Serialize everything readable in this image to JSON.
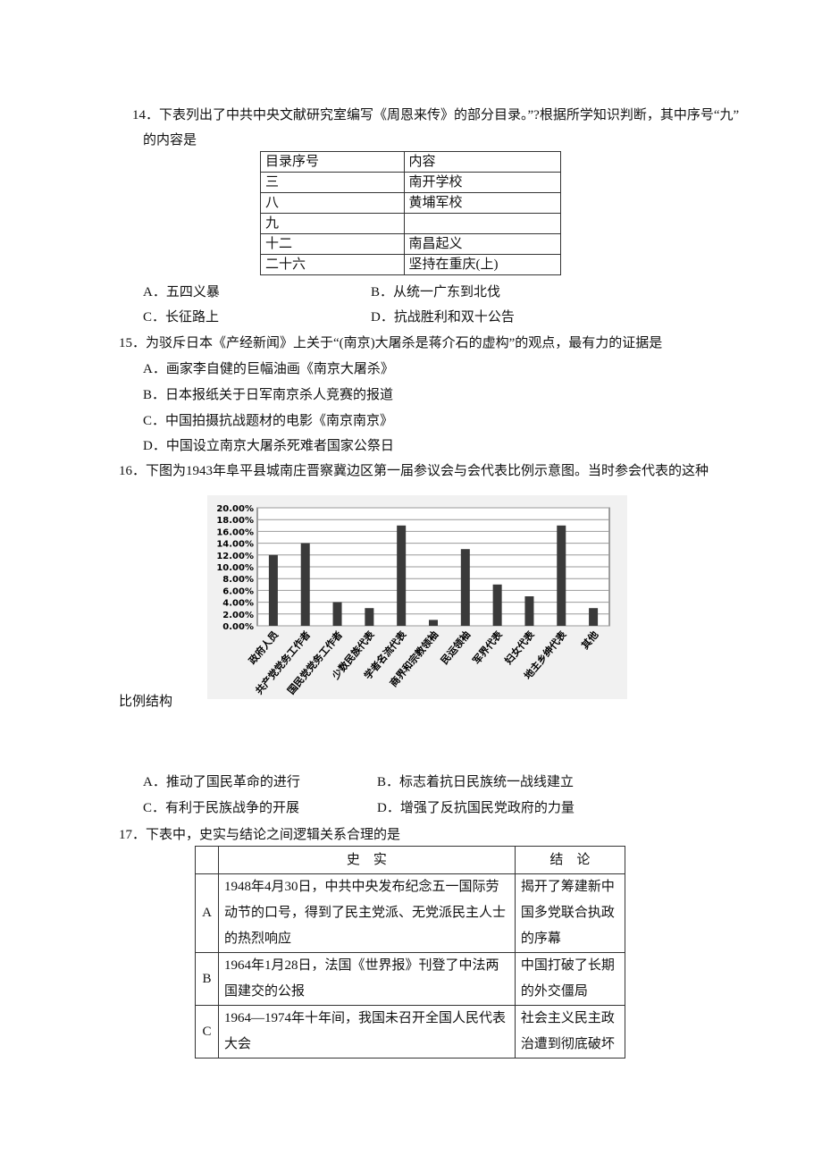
{
  "questions": [
    {
      "stem": "14．下表列出了中共中央文献研究室编写《周恩来传》的部分目录。”?根据所学知识判断，其中序号“九”",
      "stem_cont": "的内容是",
      "table": {
        "header": [
          "目录序号",
          "内容"
        ],
        "rows": [
          [
            "三",
            "南开学校"
          ],
          [
            "八",
            "黄埔军校"
          ],
          [
            "九"
          ],
          [
            "十二",
            "南昌起义"
          ],
          [
            "二十六",
            "坚持在重庆(上)"
          ]
        ]
      },
      "options": [
        "A．五四义暴",
        "B．从统一广东到北伐",
        "C．长征路上",
        "D．抗战胜利和双十公告"
      ]
    },
    {
      "stem": "15．为驳斥日本《产经新闻》上关于“(南京)大屠杀是蒋介石的虚构”的观点，最有力的证据是",
      "options": [
        "A．画家李自健的巨幅油画《南京大屠杀》",
        "B．日本报纸关于日军南京杀人竞赛的报道",
        "C．中国拍摄抗战题材的电影《南京南京》",
        "D．中国设立南京大屠杀死难者国家公祭日"
      ]
    },
    {
      "stem": "16．下图为1943年阜平县城南庄晋察冀边区第一届参议会与会代表比例示意图。当时参会代表的这种",
      "stem_cont": "比例结构",
      "options": [
        "A．推动了国民革命的进行",
        "B．标志着抗日民族统一战线建立",
        "C．有利于民族战争的开展",
        "D．增强了反抗国民党政府的力量"
      ]
    },
    {
      "stem": "17．下表中，史实与结论之间逻辑关系合理的是",
      "table": {
        "header": [
          "史　实",
          "结　论"
        ],
        "rows": [
          [
            "A",
            "1948年4月30日，中共中央发布纪念五一国际劳动节的口号，得到了民主党派、无党派民主人士的热烈响应",
            "揭开了筹建新中国多党联合执政的序幕"
          ],
          [
            "B",
            "1964年1月28日，法国《世界报》刊登了中法两国建交的公报",
            "中国打破了长期的外交僵局"
          ],
          [
            "C",
            "1964—1974年十年间，我国未召开全国人民代表大会",
            "社会主义民主政治遭到彻底破坏"
          ]
        ]
      }
    }
  ],
  "chart_data": {
    "type": "bar",
    "categories": [
      "政府人员",
      "共产党党务工作者",
      "国民党党务工作者",
      "少数民族代表",
      "学者名流代表",
      "商界和宗教领袖",
      "民运领袖",
      "军界代表",
      "妇女代表",
      "地主乡绅代表",
      "其他"
    ],
    "values": [
      12,
      14,
      4,
      3,
      17,
      1,
      13,
      7,
      5,
      17,
      3
    ],
    "color": "#3a3a3a",
    "ylim": [
      0,
      20
    ],
    "yticks": [
      {
        "value": 0,
        "label": "0.00%"
      },
      {
        "value": 2,
        "label": "2.00%"
      },
      {
        "value": 4,
        "label": "4.00%"
      },
      {
        "value": 6,
        "label": "6.00%"
      },
      {
        "value": 8,
        "label": "8.00%"
      },
      {
        "value": 10,
        "label": "10.00%"
      },
      {
        "value": 12,
        "label": "12.00%"
      },
      {
        "value": 14,
        "label": "14.00%"
      },
      {
        "value": 16,
        "label": "16.00%"
      },
      {
        "value": 18,
        "label": "18.00%"
      },
      {
        "value": 20,
        "label": "20.00%"
      }
    ],
    "grid": true
  }
}
